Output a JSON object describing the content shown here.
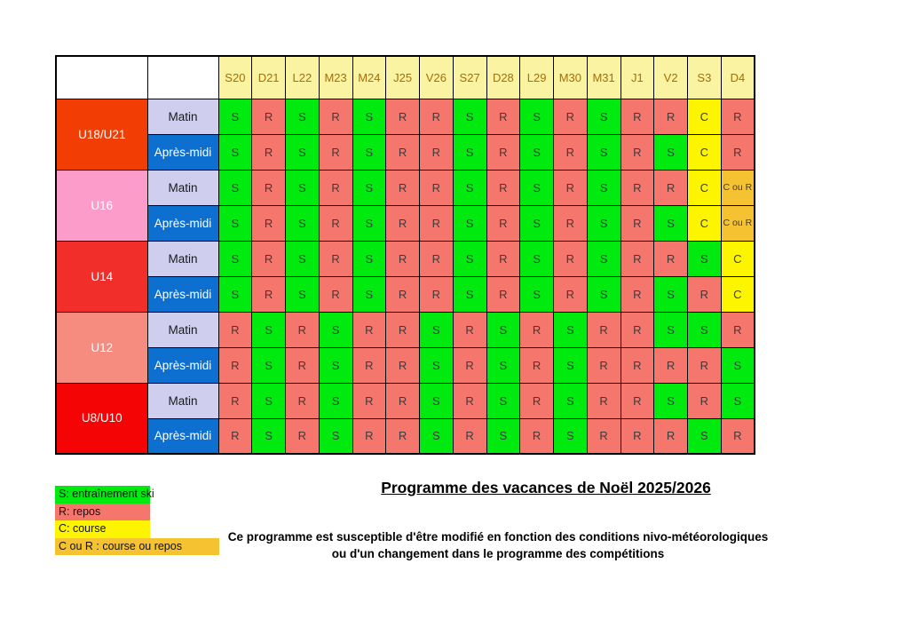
{
  "table": {
    "columns": [
      "S20",
      "D21",
      "L22",
      "M23",
      "M24",
      "J25",
      "V26",
      "S27",
      "D28",
      "L29",
      "M30",
      "M31",
      "J1",
      "V2",
      "S3",
      "D4"
    ],
    "header_bg": "#faf3a2",
    "header_text_color": "#a86c08",
    "period_styles": {
      "matin_bg": "#cfceef",
      "apres_bg": "#0d6fd0"
    },
    "groups": [
      {
        "label": "U18/U21",
        "color": "#f23d05",
        "rows": [
          {
            "period": "Matin",
            "cells": [
              "S",
              "R",
              "S",
              "R",
              "S",
              "R",
              "R",
              "S",
              "R",
              "S",
              "R",
              "S",
              "R",
              "R",
              "C",
              "R"
            ]
          },
          {
            "period": "Après-midi",
            "cells": [
              "S",
              "R",
              "S",
              "R",
              "S",
              "R",
              "R",
              "S",
              "R",
              "S",
              "R",
              "S",
              "R",
              "S",
              "C",
              "R"
            ]
          }
        ]
      },
      {
        "label": "U16",
        "color": "#fb9ccb",
        "rows": [
          {
            "period": "Matin",
            "cells": [
              "S",
              "R",
              "S",
              "R",
              "S",
              "R",
              "R",
              "S",
              "R",
              "S",
              "R",
              "S",
              "R",
              "R",
              "C",
              "C ou R"
            ]
          },
          {
            "period": "Après-midi",
            "cells": [
              "S",
              "R",
              "S",
              "R",
              "S",
              "R",
              "R",
              "S",
              "R",
              "S",
              "R",
              "S",
              "R",
              "S",
              "C",
              "C ou R"
            ]
          }
        ]
      },
      {
        "label": "U14",
        "color": "#f22e2b",
        "rows": [
          {
            "period": "Matin",
            "cells": [
              "S",
              "R",
              "S",
              "R",
              "S",
              "R",
              "R",
              "S",
              "R",
              "S",
              "R",
              "S",
              "R",
              "R",
              "S",
              "C"
            ]
          },
          {
            "period": "Après-midi",
            "cells": [
              "S",
              "R",
              "S",
              "R",
              "S",
              "R",
              "R",
              "S",
              "R",
              "S",
              "R",
              "S",
              "R",
              "S",
              "R",
              "C"
            ]
          }
        ]
      },
      {
        "label": "U12",
        "color": "#f68b80",
        "rows": [
          {
            "period": "Matin",
            "cells": [
              "R",
              "S",
              "R",
              "S",
              "R",
              "R",
              "S",
              "R",
              "S",
              "R",
              "S",
              "R",
              "R",
              "S",
              "S",
              "R"
            ]
          },
          {
            "period": "Après-midi",
            "cells": [
              "R",
              "S",
              "R",
              "S",
              "R",
              "R",
              "S",
              "R",
              "S",
              "R",
              "S",
              "R",
              "R",
              "R",
              "R",
              "S"
            ]
          }
        ]
      },
      {
        "label": "U8/U10",
        "color": "#f40404",
        "rows": [
          {
            "period": "Matin",
            "cells": [
              "R",
              "S",
              "R",
              "S",
              "R",
              "R",
              "S",
              "R",
              "S",
              "R",
              "S",
              "R",
              "R",
              "S",
              "R",
              "S"
            ]
          },
          {
            "period": "Après-midi",
            "cells": [
              "R",
              "S",
              "R",
              "S",
              "R",
              "R",
              "S",
              "R",
              "S",
              "R",
              "S",
              "R",
              "R",
              "R",
              "S",
              "R"
            ]
          }
        ]
      }
    ]
  },
  "cell_colors": {
    "S": "#00ea10",
    "R": "#f5766d",
    "C": "#fdf500",
    "C ou R": "#f5c231"
  },
  "legend": [
    {
      "label": "S: entraînement ski",
      "color": "#00ea10",
      "width": 103
    },
    {
      "label": "R: repos",
      "color": "#f5766d",
      "width": 103
    },
    {
      "label": "C: course",
      "color": "#fdf500",
      "width": 103
    },
    {
      "label": "C ou R : course ou repos",
      "color": "#f5c231",
      "width": 181
    }
  ],
  "title": "Programme des vacances de Noël 2025/2026",
  "note": {
    "line1": "Ce programme est susceptible d'être modifié en fonction des conditions nivo-météorologiques",
    "line2": "ou d'un changement dans le  programme des compétitions"
  }
}
